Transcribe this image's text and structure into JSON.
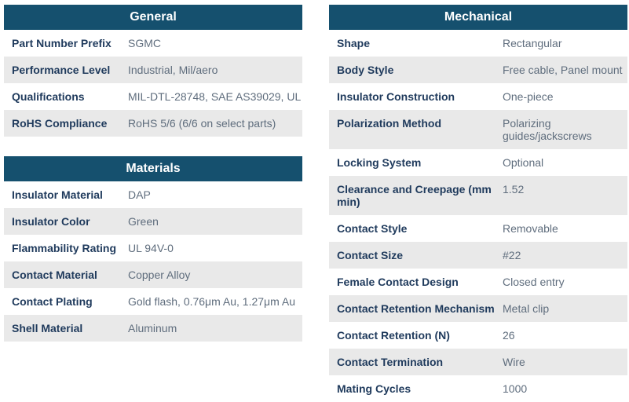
{
  "colors": {
    "header_bg": "#15506E",
    "header_text": "#FFFFFF",
    "label_text": "#1F3A5C",
    "value_text": "#5F6D7D",
    "row_bg": "#FFFFFF",
    "row_alt_bg": "#E9E9E9"
  },
  "tables": {
    "general": {
      "title": "General",
      "rows": [
        {
          "label": "Part Number Prefix",
          "value": "SGMC"
        },
        {
          "label": "Performance Level",
          "value": "Industrial, Mil/aero"
        },
        {
          "label": "Qualifications",
          "value": "MIL-DTL-28748, SAE AS39029, UL"
        },
        {
          "label": "RoHS Compliance",
          "value": "RoHS 5/6 (6/6 on select parts)"
        }
      ]
    },
    "materials": {
      "title": "Materials",
      "rows": [
        {
          "label": "Insulator Material",
          "value": "DAP"
        },
        {
          "label": "Insulator Color",
          "value": "Green"
        },
        {
          "label": "Flammability Rating",
          "value": "UL 94V-0"
        },
        {
          "label": "Contact Material",
          "value": "Copper Alloy"
        },
        {
          "label": "Contact Plating",
          "value": "Gold flash, 0.76μm Au, 1.27μm Au"
        },
        {
          "label": "Shell Material",
          "value": "Aluminum"
        }
      ]
    },
    "mechanical": {
      "title": "Mechanical",
      "rows": [
        {
          "label": "Shape",
          "value": "Rectangular"
        },
        {
          "label": "Body Style",
          "value": "Free cable, Panel mount"
        },
        {
          "label": "Insulator Construction",
          "value": "One-piece"
        },
        {
          "label": "Polarization Method",
          "value": "Polarizing guides/jackscrews"
        },
        {
          "label": "Locking System",
          "value": "Optional"
        },
        {
          "label": "Clearance and Creepage (mm min)",
          "value": "1.52"
        },
        {
          "label": "Contact Style",
          "value": "Removable"
        },
        {
          "label": "Contact Size",
          "value": "#22"
        },
        {
          "label": "Female Contact Design",
          "value": "Closed entry"
        },
        {
          "label": "Contact Retention Mechanism",
          "value": "Metal clip"
        },
        {
          "label": "Contact Retention (N)",
          "value": "26"
        },
        {
          "label": "Contact Termination",
          "value": "Wire"
        },
        {
          "label": "Mating Cycles",
          "value": "1000"
        }
      ]
    }
  }
}
